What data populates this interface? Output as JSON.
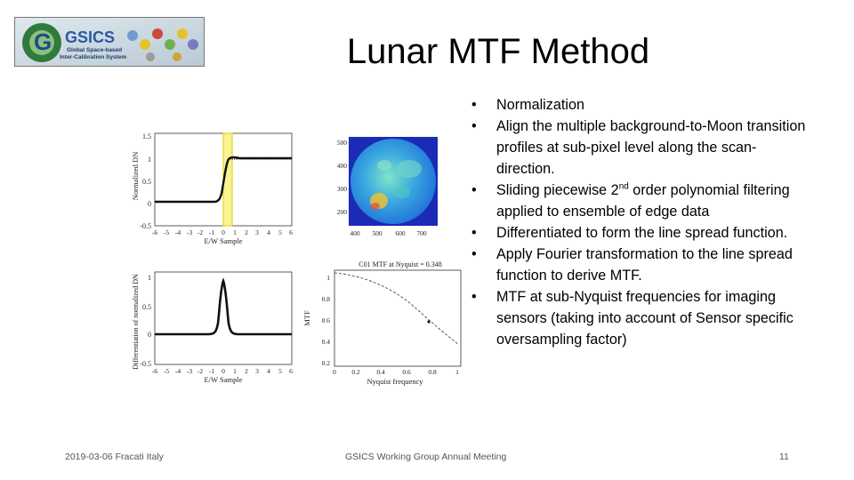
{
  "logo": {
    "wordmark": "GSICS",
    "tagline_1": "Global Space-based",
    "tagline_2": "Inter-Calibration System"
  },
  "title": "Lunar MTF Method",
  "bullets": [
    {
      "text": "Normalization"
    },
    {
      "text": "Align the multiple background-to-Moon transition profiles at sub-pixel level along the scan-direction."
    },
    {
      "pre": "Sliding piecewise 2",
      "sup": "nd",
      "post": " order polynomial filtering applied to ensemble of edge data"
    },
    {
      "text": "Differentiated to form the line spread function."
    },
    {
      "text": "Apply Fourier transformation to the line spread function to derive MTF."
    },
    {
      "text": "MTF at sub-Nyquist frequencies for imaging sensors  (taking into account  of Sensor specific oversampling factor)"
    }
  ],
  "figures": {
    "edge": {
      "ylabel": "Normalized DN",
      "xlabel": "E/W Sample",
      "yticks": [
        "1.5",
        "1",
        "0.5",
        "0",
        "-0.5"
      ],
      "xticks": [
        "-6",
        "-5",
        "-4",
        "-3",
        "-2",
        "-1",
        "0",
        "1",
        "2",
        "3",
        "4",
        "5",
        "6"
      ],
      "highlight_color": "#f4ea3c"
    },
    "lsf": {
      "ylabel": "Differentiation of normalized DN",
      "xlabel": "E/W Sample",
      "yticks": [
        "1",
        "0.5",
        "0",
        "-0.5"
      ],
      "xticks": [
        "-6",
        "-5",
        "-4",
        "-3",
        "-2",
        "-1",
        "0",
        "1",
        "2",
        "3",
        "4",
        "5",
        "6"
      ]
    },
    "moon": {
      "yticks": [
        "500",
        "400",
        "300",
        "200"
      ],
      "xticks": [
        "400",
        "500",
        "600",
        "700"
      ]
    },
    "mtf": {
      "title": "C01 MTF at Nyquist = 0.348",
      "ylabel": "MTF",
      "xlabel": "Nyquist frequency",
      "yticks": [
        "1",
        "0.8",
        "0.6",
        "0.4",
        "0.2"
      ],
      "xticks": [
        "0",
        "0.2",
        "0.4",
        "0.6",
        "0.8",
        "1"
      ]
    }
  },
  "footer": {
    "left": "2019-03-06 Fracati Italy",
    "center": "GSICS Working Group Annual Meeting",
    "page": "11"
  }
}
